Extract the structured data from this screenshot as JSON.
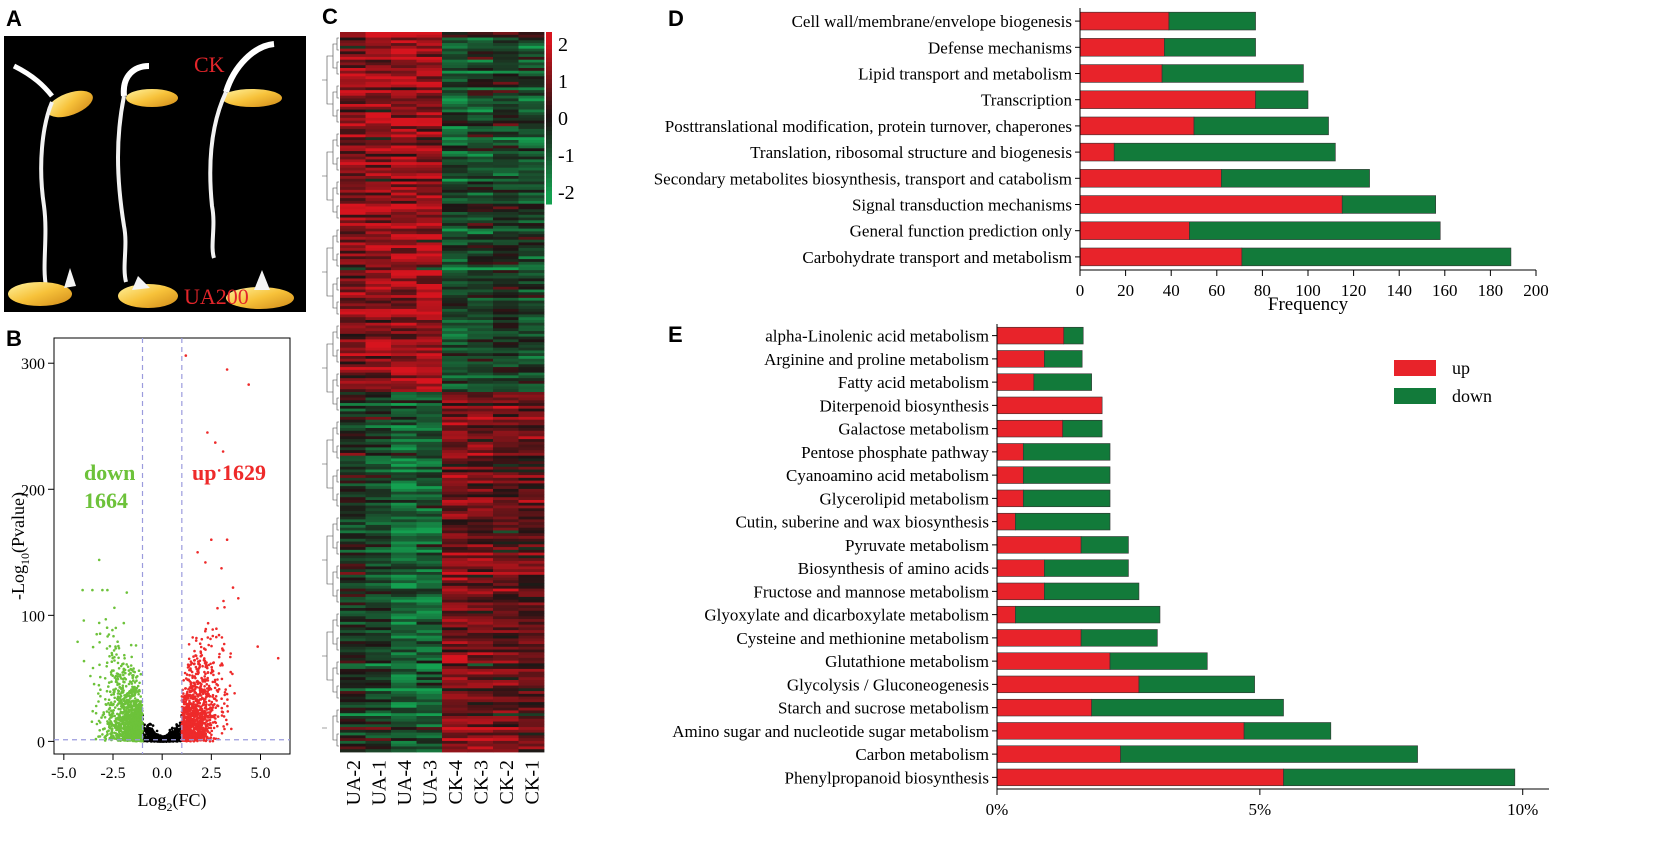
{
  "panels": {
    "a": {
      "letter": "A",
      "label_top": "CK",
      "label_bottom": "UA200"
    },
    "b": {
      "letter": "B"
    },
    "c": {
      "letter": "C"
    },
    "d": {
      "letter": "D"
    },
    "e": {
      "letter": "E"
    }
  },
  "colors": {
    "up": "#e8232a",
    "down": "#127a3a",
    "volcano_up": "#ee2a2a",
    "volcano_down": "#6dc23a",
    "volcano_ns": "#000000",
    "threshold": "#9b9bdd"
  },
  "chart_data": [
    {
      "id": "volcano",
      "type": "scatter",
      "xlabel": "Log2(FC)",
      "xlabel_base": "Log",
      "xlabel_sub": "2",
      "xlabel_tail": "(FC)",
      "ylabel_head": "-Log",
      "ylabel_sub": "10",
      "ylabel_tail": "(Pvalue)",
      "xlim": [
        -5.5,
        6.5
      ],
      "ylim": [
        -10,
        320
      ],
      "xticks": [
        -5.0,
        -2.5,
        0.0,
        2.5,
        5.0
      ],
      "xtick_labels": [
        "-5.0",
        "-2.5",
        "0.0",
        "2.5",
        "5.0"
      ],
      "yticks": [
        0,
        100,
        200,
        300
      ],
      "ytick_labels": [
        "0",
        "100",
        "200",
        "300"
      ],
      "thresholds_x": [
        -1,
        1
      ],
      "threshold_y": 1.3,
      "annotations": {
        "down_label": "down",
        "down_count": "1664",
        "up_label": "up 1629"
      },
      "outliers": [
        [
          1.2,
          306
        ],
        [
          3.3,
          295
        ],
        [
          4.4,
          283
        ],
        [
          2.3,
          245
        ],
        [
          2.7,
          237
        ],
        [
          3.1,
          230
        ],
        [
          2.9,
          215
        ],
        [
          -3.2,
          144
        ],
        [
          1.8,
          150
        ],
        [
          2.2,
          142
        ],
        [
          5.9,
          66
        ],
        [
          -4.3,
          79
        ],
        [
          3.6,
          122
        ],
        [
          2.5,
          160
        ],
        [
          -1.8,
          118
        ]
      ]
    },
    {
      "id": "heatmap",
      "type": "heatmap",
      "columns": [
        "UA-2",
        "UA-1",
        "UA-4",
        "UA-3",
        "CK-4",
        "CK-3",
        "CK-2",
        "CK-1"
      ],
      "color_scale": {
        "min": -2,
        "max": 2,
        "ticks": [
          "2",
          "1",
          "0",
          "-1",
          "-2"
        ]
      },
      "clusters": [
        {
          "fraction": 0.5,
          "means": [
            1.1,
            1.3,
            1.4,
            1.5,
            -0.8,
            -0.6,
            -0.4,
            -0.7
          ]
        },
        {
          "fraction": 0.5,
          "means": [
            -0.4,
            -0.6,
            -1.2,
            -1.1,
            1.0,
            0.9,
            0.8,
            0.7
          ]
        }
      ]
    },
    {
      "id": "cog",
      "type": "bar",
      "orientation": "horizontal",
      "stacked": true,
      "categories": [
        "Cell wall/membrane/envelope biogenesis",
        "Defense mechanisms",
        "Lipid transport and metabolism",
        "Transcription",
        "Posttranslational modification, protein turnover, chaperones",
        "Translation, ribosomal structure and biogenesis",
        "Secondary metabolites biosynthesis, transport and catabolism",
        "Signal transduction mechanisms",
        "General function prediction only",
        "Carbohydrate transport and metabolism"
      ],
      "series": [
        {
          "name": "up",
          "values": [
            39,
            37,
            36,
            77,
            50,
            15,
            62,
            115,
            48,
            71
          ]
        },
        {
          "name": "down",
          "values": [
            38,
            40,
            62,
            23,
            59,
            97,
            65,
            41,
            110,
            118
          ]
        }
      ],
      "xlabel": "Frequency",
      "xlim": [
        0,
        200
      ],
      "xticks": [
        "0",
        "20",
        "40",
        "60",
        "80",
        "100",
        "120",
        "140",
        "160",
        "180",
        "200"
      ]
    },
    {
      "id": "kegg",
      "type": "bar",
      "orientation": "horizontal",
      "stacked": true,
      "categories": [
        "alpha-Linolenic acid metabolism",
        "Arginine and proline metabolism",
        "Fatty acid metabolism",
        "Diterpenoid biosynthesis",
        "Galactose metabolism",
        "Pentose phosphate pathway",
        "Cyanoamino acid metabolism",
        "Glycerolipid metabolism",
        "Cutin, suberine and wax biosynthesis",
        "Pyruvate metabolism",
        "Biosynthesis of amino acids",
        "Fructose and mannose metabolism",
        "Glyoxylate and dicarboxylate metabolism",
        "Cysteine and methionine metabolism",
        "Glutathione metabolism",
        "Glycolysis / Gluconeogenesis",
        "Starch and sucrose metabolism",
        "Amino sugar and nucleotide sugar metabolism",
        "Carbon metabolism",
        "Phenylpropanoid biosynthesis"
      ],
      "series": [
        {
          "name": "up",
          "values": [
            1.27,
            0.9,
            0.7,
            2.0,
            1.25,
            0.5,
            0.5,
            0.5,
            0.35,
            1.6,
            0.9,
            0.9,
            0.35,
            1.6,
            2.15,
            2.7,
            1.8,
            4.7,
            2.35,
            5.45
          ]
        },
        {
          "name": "down",
          "values": [
            0.37,
            0.72,
            1.1,
            0.0,
            0.75,
            1.65,
            1.65,
            1.65,
            1.8,
            0.9,
            1.6,
            1.8,
            2.75,
            1.45,
            1.85,
            2.2,
            3.65,
            1.65,
            5.65,
            4.4
          ]
        }
      ],
      "xlim": [
        0,
        10.5
      ],
      "xticks": [
        "0%",
        "5%",
        "10%"
      ],
      "xtick_values": [
        0,
        5,
        10
      ],
      "legend": {
        "position": "top-right",
        "up": "up",
        "down": "down"
      }
    }
  ]
}
